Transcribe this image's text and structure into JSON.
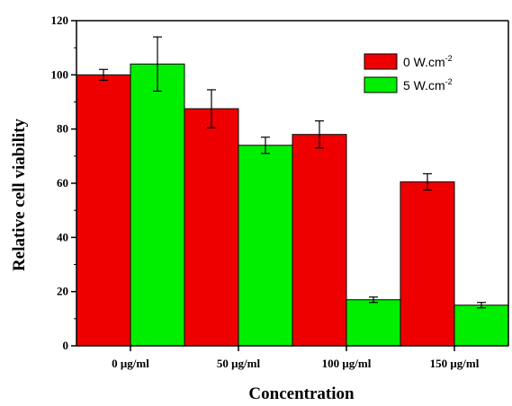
{
  "chart_data": {
    "type": "bar",
    "title": "",
    "xlabel": "Concentration",
    "ylabel": "Relative cell viability",
    "ylim": [
      0,
      120
    ],
    "yticks": [
      0,
      20,
      40,
      60,
      80,
      100,
      120
    ],
    "categories": [
      "0 μg/ml",
      "50 μg/ml",
      "100 μg/ml",
      "150 μg/ml"
    ],
    "legend_position": "top-right",
    "grid": false,
    "series": [
      {
        "name": "0 W.cm",
        "name_superscript": "-2",
        "color": "#ee0000",
        "values": [
          100,
          87.5,
          78,
          60.5
        ],
        "errors": [
          2,
          7,
          5,
          3
        ]
      },
      {
        "name": "5 W.cm",
        "name_superscript": "-2",
        "color": "#00ee00",
        "values": [
          104,
          74,
          17,
          15
        ],
        "errors": [
          10,
          3,
          1,
          1
        ]
      }
    ]
  }
}
